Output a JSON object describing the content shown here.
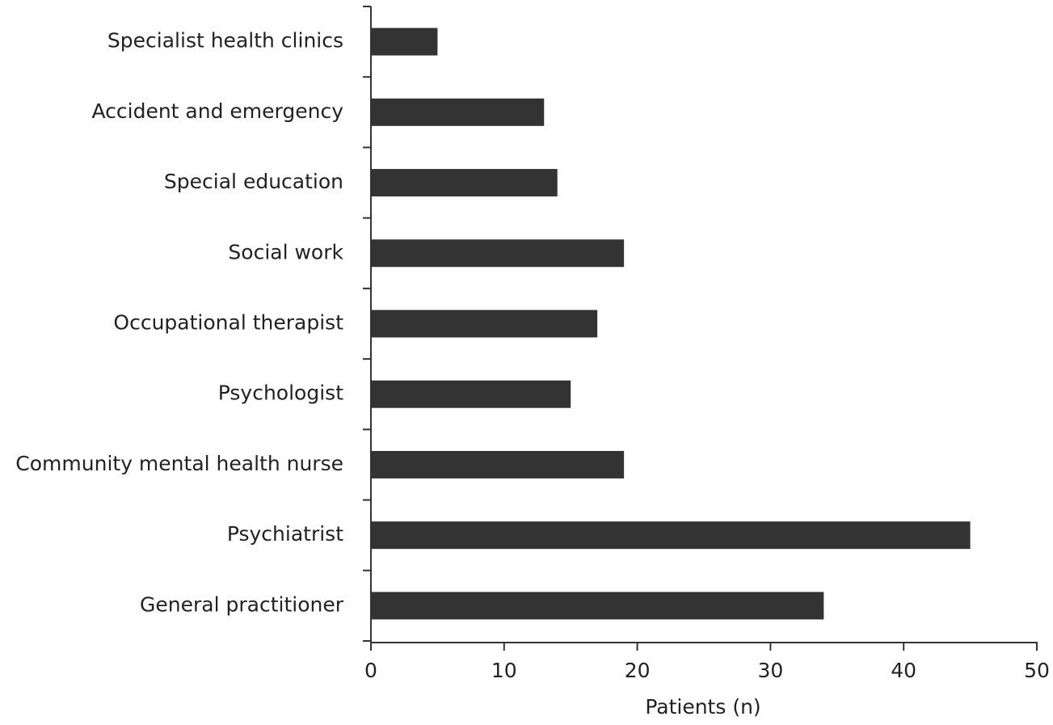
{
  "chart_data": {
    "type": "barh",
    "categories": [
      "Specialist health clinics",
      "Accident and emergency",
      "Special education",
      "Social work",
      "Occupational therapist",
      "Psychologist",
      "Community mental health nurse",
      "Psychiatrist",
      "General practitioner"
    ],
    "values": [
      5,
      13,
      14,
      19,
      17,
      15,
      19,
      45,
      34
    ],
    "color": "#333333",
    "xlim": [
      0,
      50
    ],
    "xticks": [
      0,
      10,
      20,
      30,
      40,
      50
    ],
    "xlabel": "Patients (n)"
  }
}
